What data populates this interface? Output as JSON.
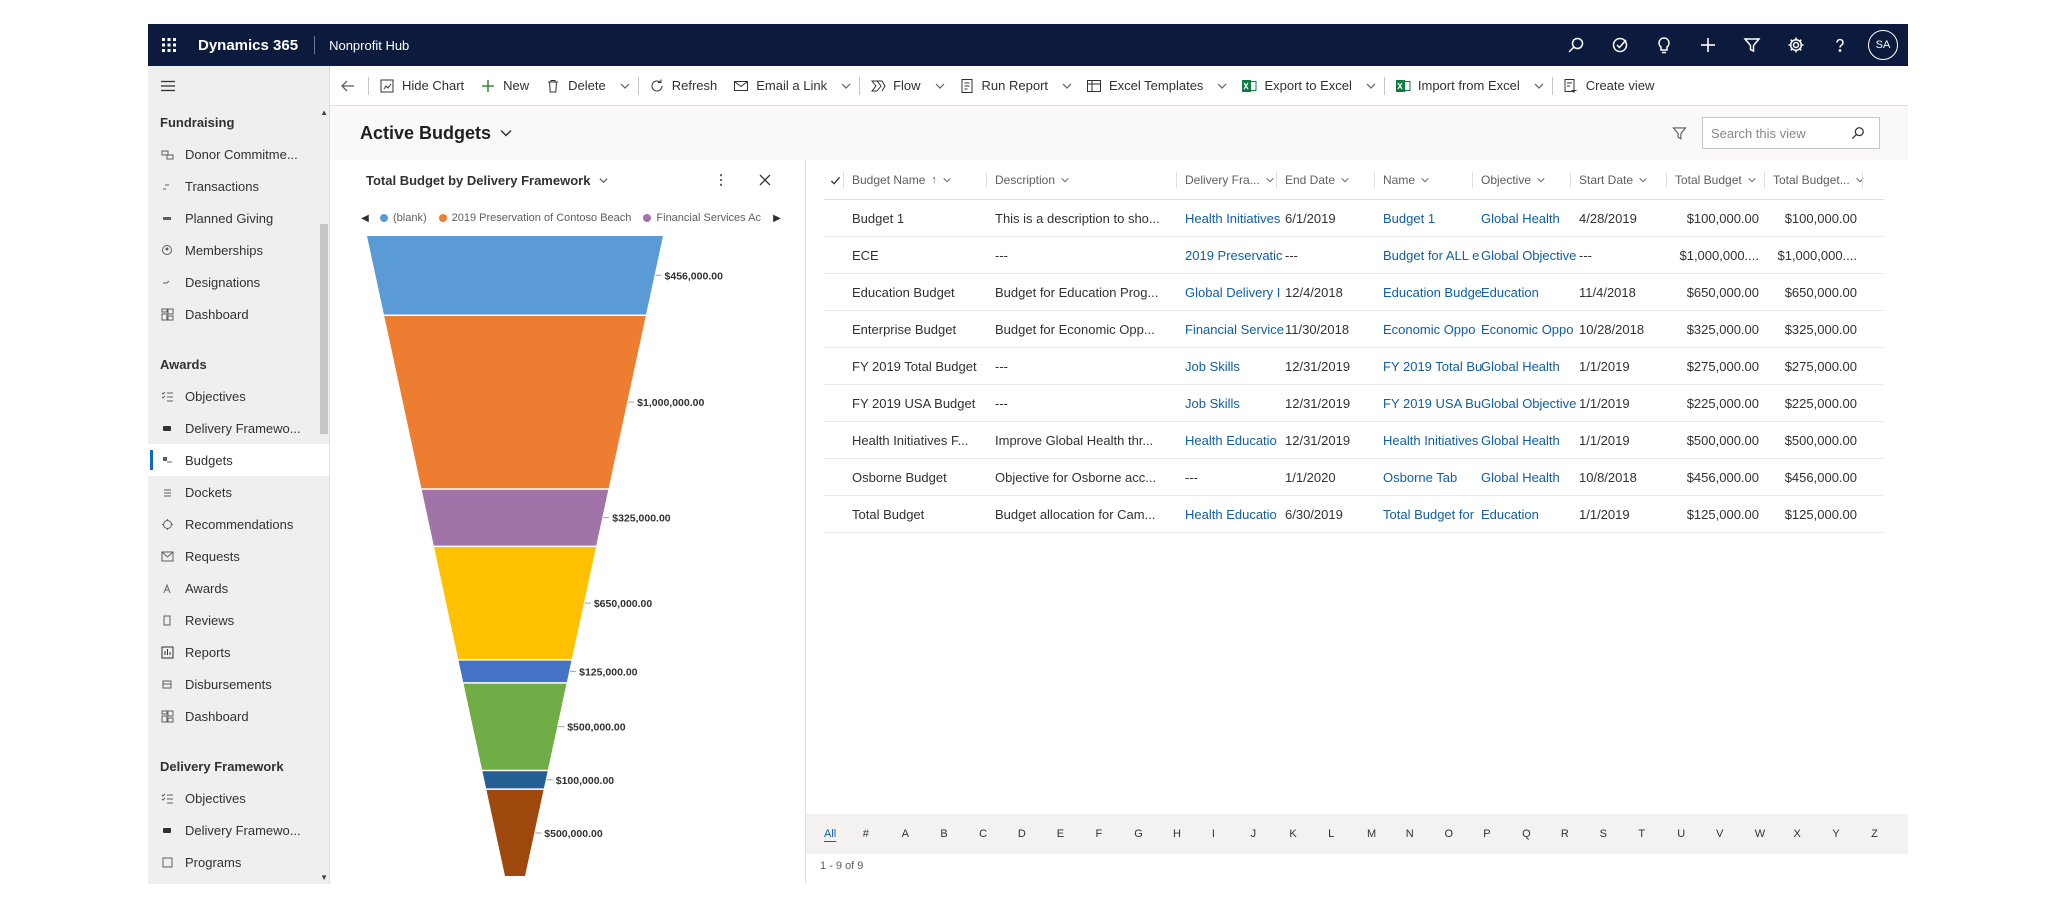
{
  "topbar": {
    "app_name": "Dynamics 365",
    "hub_name": "Nonprofit Hub",
    "icons": [
      "search-icon",
      "task-icon",
      "lightbulb-icon",
      "plus-icon",
      "filter-icon",
      "gear-icon",
      "help-icon"
    ],
    "avatar_initials": "SA"
  },
  "sidebar": {
    "groups": [
      {
        "title": "Fundraising",
        "items": [
          {
            "label": "Donor Commitme...",
            "icon": "commitment-icon"
          },
          {
            "label": "Transactions",
            "icon": "transactions-icon"
          },
          {
            "label": "Planned Giving",
            "icon": "planned-giving-icon"
          },
          {
            "label": "Memberships",
            "icon": "memberships-icon"
          },
          {
            "label": "Designations",
            "icon": "designations-icon"
          },
          {
            "label": "Dashboard",
            "icon": "dashboard-icon"
          }
        ]
      },
      {
        "title": "Awards",
        "items": [
          {
            "label": "Objectives",
            "icon": "objectives-icon"
          },
          {
            "label": "Delivery Framewo...",
            "icon": "delivery-framework-icon"
          },
          {
            "label": "Budgets",
            "icon": "budgets-icon",
            "active": true
          },
          {
            "label": "Dockets",
            "icon": "dockets-icon"
          },
          {
            "label": "Recommendations",
            "icon": "recommendations-icon"
          },
          {
            "label": "Requests",
            "icon": "requests-icon"
          },
          {
            "label": "Awards",
            "icon": "awards-icon"
          },
          {
            "label": "Reviews",
            "icon": "reviews-icon"
          },
          {
            "label": "Reports",
            "icon": "reports-icon"
          },
          {
            "label": "Disbursements",
            "icon": "disbursements-icon"
          },
          {
            "label": "Dashboard",
            "icon": "dashboard-icon"
          }
        ]
      },
      {
        "title": "Delivery Framework",
        "items": [
          {
            "label": "Objectives",
            "icon": "objectives-icon"
          },
          {
            "label": "Delivery Framewo...",
            "icon": "delivery-framework-icon"
          },
          {
            "label": "Programs",
            "icon": "programs-icon"
          }
        ]
      }
    ]
  },
  "commandbar": {
    "items": [
      {
        "label": "Hide Chart",
        "icon": "chart-icon"
      },
      {
        "label": "New",
        "icon": "plus-icon"
      },
      {
        "label": "Delete",
        "icon": "trash-icon",
        "chevron": true
      },
      {
        "label": "Refresh",
        "icon": "refresh-icon"
      },
      {
        "label": "Email a Link",
        "icon": "email-link-icon",
        "chevron": true
      },
      {
        "label": "Flow",
        "icon": "flow-icon",
        "chevron": true
      },
      {
        "label": "Run Report",
        "icon": "report-icon",
        "chevron": true
      },
      {
        "label": "Excel Templates",
        "icon": "excel-templates-icon",
        "chevron": true
      },
      {
        "label": "Export to Excel",
        "icon": "excel-icon",
        "chevron": true
      },
      {
        "label": "Import from Excel",
        "icon": "excel-import-icon",
        "chevron": true
      },
      {
        "label": "Create view",
        "icon": "create-view-icon"
      }
    ]
  },
  "view": {
    "title": "Active Budgets",
    "search_placeholder": "Search this view"
  },
  "chart": {
    "title": "Total Budget by Delivery Framework",
    "legend": [
      {
        "name": "(blank)",
        "color": "#5b9bd5"
      },
      {
        "name": "2019 Preservation of Contoso Beach",
        "color": "#ed7d31"
      },
      {
        "name": "Financial Services Ac",
        "color": "#a074a8"
      }
    ]
  },
  "chart_data": {
    "type": "funnel",
    "title": "Total Budget by Delivery Framework",
    "values": [
      456000,
      1000000,
      325000,
      650000,
      125000,
      500000,
      100000,
      500000
    ],
    "labels": [
      "$456,000.00",
      "$1,000,000.00",
      "$325,000.00",
      "$650,000.00",
      "$125,000.00",
      "$500,000.00",
      "$100,000.00",
      "$500,000.00"
    ],
    "colors": [
      "#5b9bd5",
      "#ed7d31",
      "#a074a8",
      "#ffc000",
      "#4472c4",
      "#70ad47",
      "#255e91",
      "#9e480e"
    ]
  },
  "grid": {
    "columns": [
      {
        "label": "Budget Name",
        "sort": "↑"
      },
      {
        "label": "Description"
      },
      {
        "label": "Delivery Fra..."
      },
      {
        "label": "End Date"
      },
      {
        "label": "Name"
      },
      {
        "label": "Objective"
      },
      {
        "label": "Start Date"
      },
      {
        "label": "Total Budget"
      },
      {
        "label": "Total Budget..."
      }
    ],
    "rows": [
      [
        "Budget 1",
        "This is a description to sho...",
        "Health Initiatives",
        "6/1/2019",
        "Budget 1",
        "Global Health",
        "4/28/2019",
        "$100,000.00",
        "$100,000.00"
      ],
      [
        "ECE",
        "---",
        "2019 Preservatic",
        "---",
        "Budget for ALL e",
        "Global Objective",
        "---",
        "$1,000,000....",
        "$1,000,000...."
      ],
      [
        "Education Budget",
        "Budget for Education Prog...",
        "Global Delivery I",
        "12/4/2018",
        "Education Budge",
        "Education",
        "11/4/2018",
        "$650,000.00",
        "$650,000.00"
      ],
      [
        "Enterprise Budget",
        "Budget for Economic Opp...",
        "Financial Service",
        "11/30/2018",
        "Economic Oppo",
        "Economic Oppo",
        "10/28/2018",
        "$325,000.00",
        "$325,000.00"
      ],
      [
        "FY 2019 Total Budget",
        "---",
        "Job Skills",
        "12/31/2019",
        "FY 2019 Total Bu",
        "Global Health",
        "1/1/2019",
        "$275,000.00",
        "$275,000.00"
      ],
      [
        "FY 2019 USA Budget",
        "---",
        "Job Skills",
        "12/31/2019",
        "FY 2019 USA Bu",
        "Global Objective",
        "1/1/2019",
        "$225,000.00",
        "$225,000.00"
      ],
      [
        "Health Initiatives F...",
        "Improve Global Health thr...",
        "Health Educatio",
        "12/31/2019",
        "Health Initiatives",
        "Global Health",
        "1/1/2019",
        "$500,000.00",
        "$500,000.00"
      ],
      [
        "Osborne Budget",
        "Objective for Osborne acc...",
        "---",
        "1/1/2020",
        "Osborne Tab",
        "Global Health",
        "10/8/2018",
        "$456,000.00",
        "$456,000.00"
      ],
      [
        "Total Budget",
        "Budget allocation for Cam...",
        "Health Educatio",
        "6/30/2019",
        "Total Budget for",
        "Education",
        "1/1/2019",
        "$125,000.00",
        "$125,000.00"
      ]
    ],
    "jump_letters": [
      "All",
      "#",
      "A",
      "B",
      "C",
      "D",
      "E",
      "F",
      "G",
      "H",
      "I",
      "J",
      "K",
      "L",
      "M",
      "N",
      "O",
      "P",
      "Q",
      "R",
      "S",
      "T",
      "U",
      "V",
      "W",
      "X",
      "Y",
      "Z"
    ],
    "record_count": "1 - 9 of 9"
  }
}
